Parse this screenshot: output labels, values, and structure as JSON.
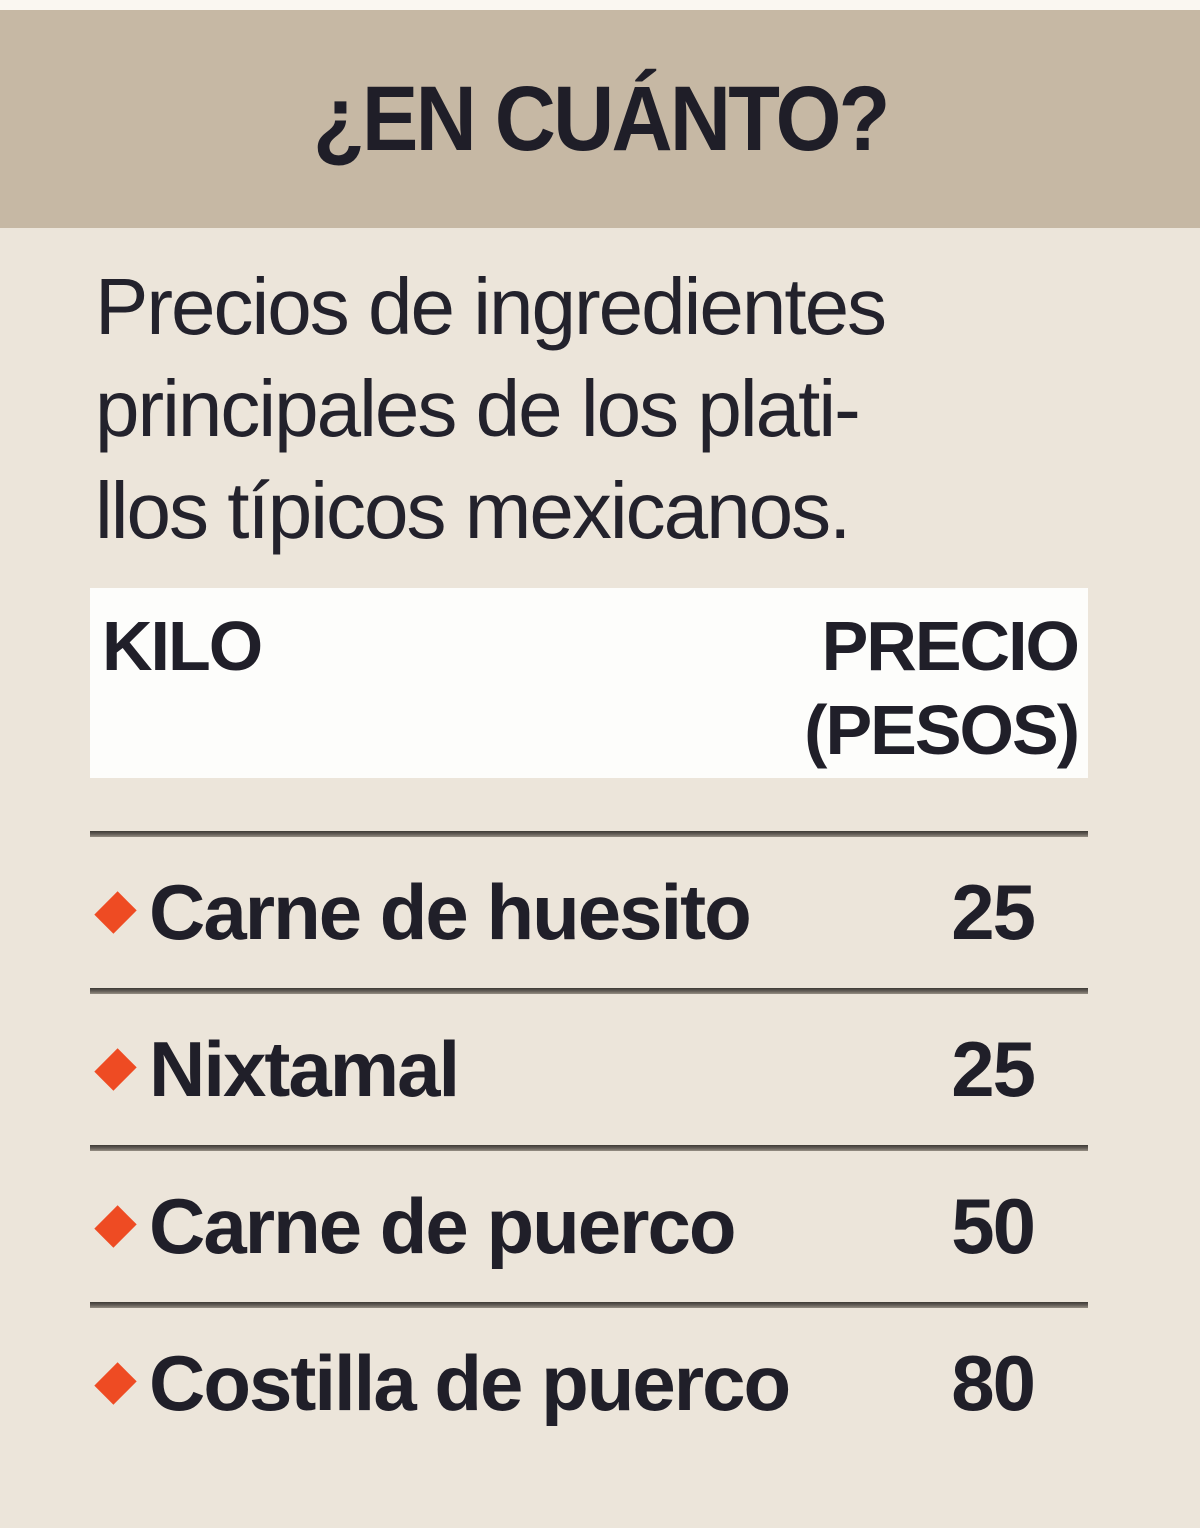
{
  "title": "¿EN CUÁNTO?",
  "intro": {
    "lines": [
      "Precios de ingredientes",
      "principales de los plati-",
      "llos típicos mexicanos."
    ]
  },
  "table": {
    "col1_header": "KILO",
    "col2_header_line1": "PRECIO",
    "col2_header_line2": "(PESOS)",
    "rows": [
      {
        "label": "Carne de huesito",
        "price": "25"
      },
      {
        "label": "Nixtamal",
        "price": "25"
      },
      {
        "label": "Carne de puerco",
        "price": "50"
      },
      {
        "label": "Costilla de puerco",
        "price": "80"
      }
    ]
  },
  "bullet_icon": "diamond",
  "colors": {
    "header_bar": "#c6b8a4",
    "background": "#ece5da",
    "table_head_bg": "#fdfdfb",
    "bullet": "#ee4b23",
    "text": "#201f29",
    "rule": "#3d3a35"
  },
  "chart_data": {
    "type": "table",
    "title": "¿EN CUÁNTO?",
    "subtitle": "Precios de ingredientes principales de los platillos típicos mexicanos.",
    "columns": [
      "KILO",
      "PRECIO (PESOS)"
    ],
    "rows": [
      [
        "Carne de huesito",
        25
      ],
      [
        "Nixtamal",
        25
      ],
      [
        "Carne de puerco",
        50
      ],
      [
        "Costilla de puerco",
        80
      ]
    ],
    "unit": "pesos por kilo",
    "legend_position": "none",
    "grid": "horizontal rules between rows"
  }
}
